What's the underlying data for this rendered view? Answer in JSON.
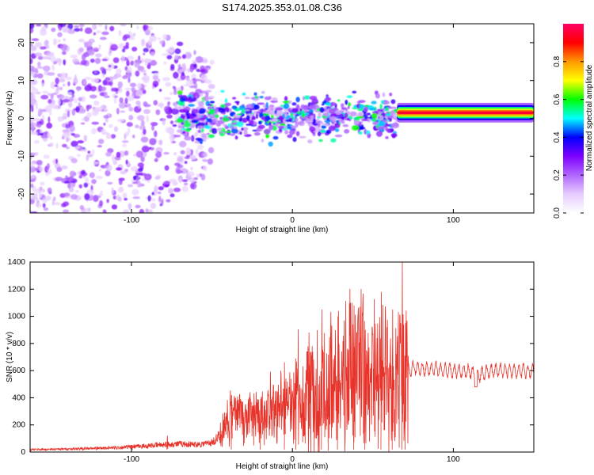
{
  "chart_data": [
    {
      "type": "heatmap",
      "title": "S174.2025.353.01.08.C36",
      "xlabel": "Height of straight line (km)",
      "ylabel": "Frequency (Hz)",
      "xlim": [
        -163,
        150
      ],
      "ylim": [
        -25,
        25
      ],
      "x_ticks": [
        -100,
        0,
        100
      ],
      "y_ticks": [
        -20,
        -10,
        0,
        10,
        20
      ],
      "colorbar": {
        "label": "Normalized spectral amplitude",
        "range": [
          0,
          1
        ],
        "ticks": [
          0.0,
          0.2,
          0.4,
          0.6,
          0.8
        ],
        "tick_labels": [
          "0.0",
          "0.2",
          "0.4",
          "0.6",
          "0.8"
        ],
        "colors": [
          "#ffffff",
          "#e6ccff",
          "#b066ff",
          "#7f00ff",
          "#0000ff",
          "#00ffff",
          "#00ff00",
          "#ffff00",
          "#ff9900",
          "#ff0000",
          "#ff0066"
        ]
      },
      "features": [
        {
          "name": "diffuse noise region",
          "x_range": [
            -163,
            -70
          ],
          "freq_range": [
            -25,
            25
          ],
          "amplitude": 0.08
        },
        {
          "name": "narrowing band",
          "x_range": [
            -70,
            65
          ],
          "freq_range": [
            -8,
            8
          ],
          "amplitude": 0.25
        },
        {
          "name": "dominant ridge",
          "x_range": [
            65,
            150
          ],
          "freq_center": 1.5,
          "amplitude": 0.95
        }
      ]
    },
    {
      "type": "line",
      "xlabel": "Height of straight line (km)",
      "ylabel": "SNR (10 * v/v)",
      "xlim": [
        -163,
        150
      ],
      "ylim": [
        0,
        1400
      ],
      "x_ticks": [
        -100,
        0,
        100
      ],
      "y_ticks": [
        0,
        200,
        400,
        600,
        800,
        1000,
        1200,
        1400
      ],
      "series": [
        {
          "name": "SNR",
          "color": "#e8332a",
          "x": [
            -163,
            -150,
            -140,
            -130,
            -120,
            -110,
            -100,
            -90,
            -80,
            -70,
            -60,
            -50,
            -45,
            -40,
            -35,
            -30,
            -25,
            -20,
            -15,
            -10,
            -5,
            0,
            5,
            10,
            15,
            20,
            25,
            30,
            35,
            40,
            45,
            50,
            55,
            60,
            65,
            70,
            72,
            75,
            80,
            90,
            100,
            110,
            115,
            120,
            130,
            140,
            150
          ],
          "values": [
            18,
            20,
            22,
            25,
            28,
            32,
            38,
            45,
            55,
            60,
            55,
            70,
            120,
            230,
            280,
            260,
            240,
            250,
            260,
            290,
            330,
            360,
            390,
            430,
            470,
            500,
            520,
            540,
            550,
            560,
            555,
            550,
            545,
            540,
            535,
            560,
            590,
            620,
            615,
            610,
            600,
            595,
            560,
            590,
            605,
            600,
            595
          ],
          "peaks_x": [
            -100,
            -78,
            -38,
            -20,
            -5,
            10,
            18,
            28,
            38,
            45,
            55,
            62,
            68,
            70
          ],
          "peaks_y": [
            40,
            120,
            420,
            390,
            520,
            880,
            1050,
            1000,
            1080,
            900,
            1180,
            1050,
            1400,
            950
          ]
        }
      ]
    }
  ]
}
